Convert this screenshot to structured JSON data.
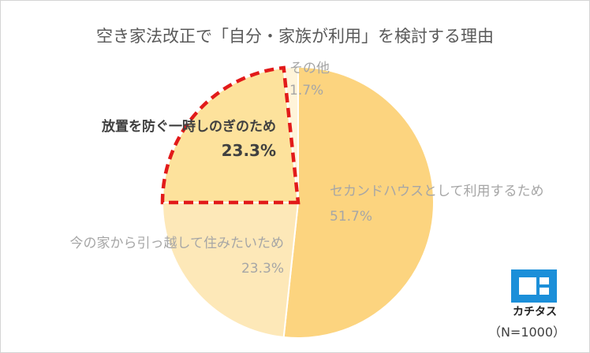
{
  "chart_data": {
    "type": "pie",
    "title": "空き家法改正で「自分・家族が利用」を検討する理由",
    "slices": [
      {
        "label": "セカンドハウスとして利用するため",
        "value": 51.7,
        "value_label": "51.7%",
        "color": "#fcd47f"
      },
      {
        "label": "今の家から引っ越して住みたいため",
        "value": 23.3,
        "value_label": "23.3%",
        "color": "#fde8b8"
      },
      {
        "label": "放置を防ぐ一時しのぎのため",
        "value": 23.3,
        "value_label": "23.3%",
        "color": "#fde29c",
        "highlighted": true,
        "highlight_color": "#e21a1a"
      },
      {
        "label": "その他",
        "value": 1.7,
        "value_label": "1.7%",
        "color": "#fff4d9"
      }
    ],
    "start_angle_deg": 0,
    "direction": "clockwise",
    "note": "（N=1000）"
  },
  "brand": {
    "name": "カチタス",
    "color": "#1b8fd9"
  }
}
